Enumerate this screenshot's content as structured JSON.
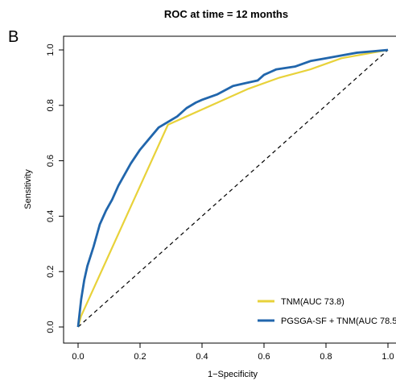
{
  "panel_label": "B",
  "chart_data": {
    "type": "line",
    "title": "ROC at time = 12 months",
    "xlabel": "1−Specificity",
    "ylabel": "Sensitivity",
    "xlim": [
      0,
      1
    ],
    "ylim": [
      0,
      1
    ],
    "xticks": [
      "0.0",
      "0.2",
      "0.4",
      "0.6",
      "0.8",
      "1.0"
    ],
    "yticks": [
      "0.0",
      "0.2",
      "0.4",
      "0.6",
      "0.8",
      "1.0"
    ],
    "grid": false,
    "legend_position": "bottom-right",
    "reference_line": {
      "style": "dashed",
      "from": [
        0,
        0
      ],
      "to": [
        1,
        1
      ],
      "color": "#000000"
    },
    "series": [
      {
        "name": "TNM(AUC 73.8)",
        "color": "#E8D23A",
        "x": [
          0.0,
          0.01,
          0.29,
          0.35,
          0.45,
          0.55,
          0.65,
          0.75,
          0.85,
          1.0
        ],
        "y": [
          0.0,
          0.04,
          0.73,
          0.76,
          0.81,
          0.86,
          0.9,
          0.93,
          0.97,
          1.0
        ]
      },
      {
        "name": "PGSGA-SF + TNM(AUC 78.5",
        "color": "#2166AC",
        "x": [
          0.0,
          0.01,
          0.02,
          0.03,
          0.05,
          0.06,
          0.07,
          0.09,
          0.11,
          0.13,
          0.15,
          0.17,
          0.2,
          0.23,
          0.26,
          0.29,
          0.32,
          0.35,
          0.38,
          0.4,
          0.45,
          0.5,
          0.54,
          0.58,
          0.6,
          0.62,
          0.64,
          0.7,
          0.75,
          0.8,
          0.85,
          0.9,
          0.95,
          1.0
        ],
        "y": [
          0.0,
          0.1,
          0.17,
          0.22,
          0.29,
          0.33,
          0.37,
          0.42,
          0.46,
          0.51,
          0.55,
          0.59,
          0.64,
          0.68,
          0.72,
          0.74,
          0.76,
          0.79,
          0.81,
          0.82,
          0.84,
          0.87,
          0.88,
          0.89,
          0.91,
          0.92,
          0.93,
          0.94,
          0.96,
          0.97,
          0.98,
          0.99,
          0.995,
          1.0
        ]
      }
    ]
  }
}
